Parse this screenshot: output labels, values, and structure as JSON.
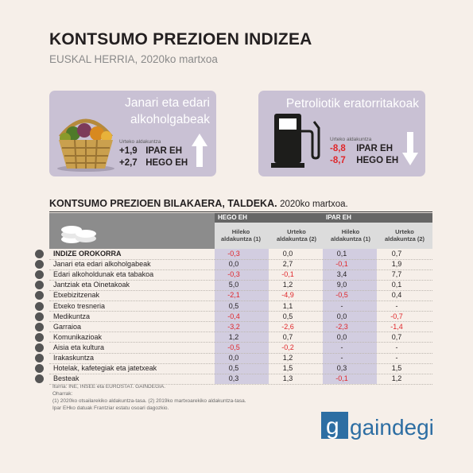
{
  "header": {
    "title": "KONTSUMO PREZIOEN INDIZEA",
    "subtitle": "EUSKAL HERRIA, 2020ko martxoa"
  },
  "card_food": {
    "title_line1": "Janari eta edari",
    "title_line2": "alkoholgabeak",
    "small_label": "Urteko aldakuntza",
    "rows": [
      {
        "value": "+1,9",
        "region": "IPAR EH"
      },
      {
        "value": "+2,7",
        "region": "HEGO EH"
      }
    ],
    "trend": "up"
  },
  "card_fuel": {
    "title": "Petroliotik eratorritakoak",
    "small_label": "Urteko aldakuntza",
    "rows": [
      {
        "value": "-8,8",
        "region": "IPAR EH"
      },
      {
        "value": "-8,7",
        "region": "HEGO EH"
      }
    ],
    "trend": "down"
  },
  "table": {
    "title": "KONTSUMO PREZIOEN BILAKAERA, TALDEKA.",
    "title_date": "2020ko martxoa.",
    "group_hego": "HEGO EH",
    "group_ipar": "IPAR EH",
    "col_monthly_1": "Hileko",
    "col_monthly_2": "aldakuntza (1)",
    "col_yearly_1": "Urteko",
    "col_yearly_2": "aldakuntza (2)"
  },
  "chart_data": {
    "type": "table",
    "title": "KONTSUMO PREZIOEN BILAKAERA, TALDEKA. 2020ko martxoa.",
    "columns": [
      "HEGO EH Hileko aldakuntza (1)",
      "HEGO EH Urteko aldakuntza (2)",
      "IPAR EH Hileko aldakuntza (1)",
      "IPAR EH Urteko aldakuntza (2)"
    ],
    "rows": [
      {
        "label": "INDIZE OROKORRA",
        "bold": true,
        "values": [
          "-0,3",
          "0,0",
          "0,1",
          "0,7"
        ]
      },
      {
        "label": "Janari eta edari alkoholgabeak",
        "values": [
          "0,0",
          "2,7",
          "-0,1",
          "1,9"
        ]
      },
      {
        "label": "Edari alkoholdunak eta tabakoa",
        "values": [
          "-0,3",
          "-0,1",
          "3,4",
          "7,7"
        ]
      },
      {
        "label": "Jantziak eta Oinetakoak",
        "values": [
          "5,0",
          "1,2",
          "9,0",
          "0,1"
        ]
      },
      {
        "label": "Etxebizitzenak",
        "values": [
          "-2,1",
          "-4,9",
          "-0,5",
          "0,4"
        ]
      },
      {
        "label": "Etxeko tresneria",
        "values": [
          "0,5",
          "1,1",
          "-",
          "-"
        ]
      },
      {
        "label": "Medikuntza",
        "values": [
          "-0,4",
          "0,5",
          "0,0",
          "-0,7"
        ]
      },
      {
        "label": "Garraioa",
        "values": [
          "-3,2",
          "-2,6",
          "-2,3",
          "-1,4"
        ]
      },
      {
        "label": "Komunikazioak",
        "values": [
          "1,2",
          "0,7",
          "0,0",
          "0,7"
        ]
      },
      {
        "label": "Aisia eta kultura",
        "values": [
          "-0,5",
          "-0,2",
          "-",
          "-"
        ]
      },
      {
        "label": "Irakaskuntza",
        "values": [
          "0,0",
          "1,2",
          "-",
          "-"
        ]
      },
      {
        "label": "Hotelak, kafetegiak eta jatetxeak",
        "values": [
          "0,5",
          "1,5",
          "0,3",
          "1,5"
        ]
      },
      {
        "label": "Besteak",
        "values": [
          "0,3",
          "1,3",
          "-0,1",
          "1,2"
        ]
      }
    ],
    "negative_color": "#e0262a",
    "highlight_color": "#d2cde0"
  },
  "footer": {
    "source": "Iturria: INE, INSEE eta EUROSTAT. GAINDEGIA.",
    "notes_title": "Oharrak:",
    "note1": "(1) 2020ko otsailarekiko aldakuntza-tasa. (2) 2019ko martxoarekiko aldakuntza-tasa.",
    "note2": "Ipar EHko datuak Frantziar estatu osoari dagozkio."
  },
  "logo": {
    "text": "gaindegia",
    "color": "#2d6ea3"
  }
}
